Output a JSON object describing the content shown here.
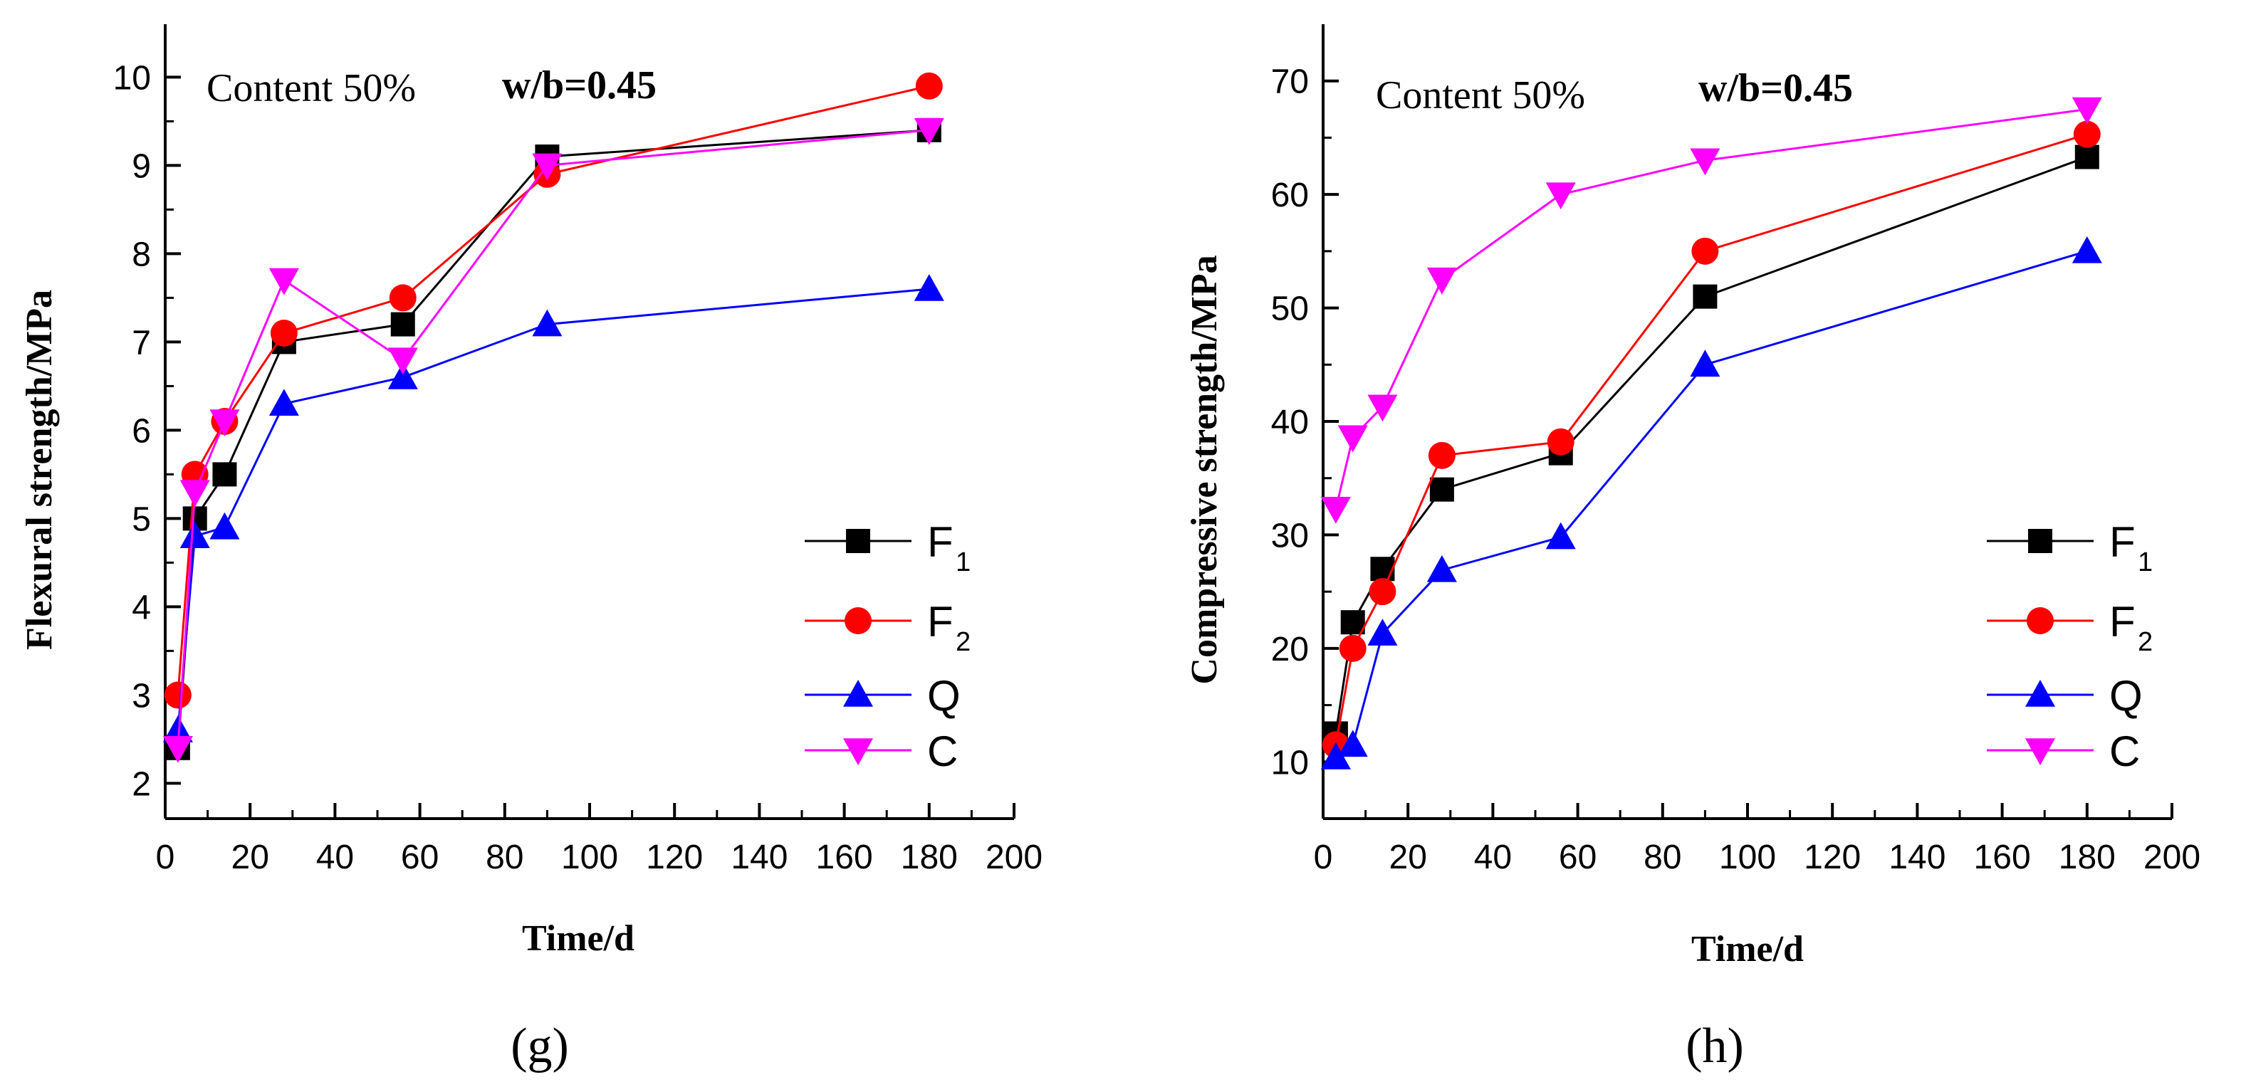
{
  "chart_data": [
    {
      "type": "line",
      "panel_label": "(g)",
      "annotation": "Content  50%",
      "annotation_bold": "w/b=0.45",
      "xlabel": "Time/d",
      "ylabel": "Flexural strength/MPa",
      "xlim": [
        0,
        200
      ],
      "ylim": [
        1.6,
        10.6
      ],
      "xticks": [
        0,
        20,
        40,
        60,
        80,
        100,
        120,
        140,
        160,
        180,
        200
      ],
      "yticks": [
        2,
        3,
        4,
        5,
        6,
        7,
        8,
        9,
        10
      ],
      "x": [
        3,
        7,
        14,
        28,
        56,
        90,
        180
      ],
      "series": [
        {
          "name": "F",
          "sub": "1",
          "marker": "square",
          "color": "#000000",
          "values": [
            2.4,
            5.0,
            5.5,
            7.0,
            7.2,
            9.1,
            9.4
          ]
        },
        {
          "name": "F",
          "sub": "2",
          "marker": "circle",
          "color": "#ff0000",
          "values": [
            3.0,
            5.5,
            6.1,
            7.1,
            7.5,
            8.9,
            9.9
          ]
        },
        {
          "name": "Q",
          "sub": "",
          "marker": "triangle-up",
          "color": "#0000ff",
          "values": [
            2.6,
            4.8,
            4.9,
            6.3,
            6.6,
            7.2,
            7.6
          ]
        },
        {
          "name": "C",
          "sub": "",
          "marker": "triangle-down",
          "color": "#ff00ff",
          "values": [
            2.4,
            5.3,
            6.1,
            7.7,
            6.8,
            9.0,
            9.4
          ]
        }
      ],
      "legend_position": "bottom-right"
    },
    {
      "type": "line",
      "panel_label": "(h)",
      "annotation": "Content  50%",
      "annotation_bold": "w/b=0.45",
      "xlabel": "Time/d",
      "ylabel": "Compressive strength/MPa",
      "xlim": [
        0,
        200
      ],
      "ylim": [
        5,
        75
      ],
      "xticks": [
        0,
        20,
        40,
        60,
        80,
        100,
        120,
        140,
        160,
        180,
        200
      ],
      "yticks": [
        10,
        20,
        30,
        40,
        50,
        60,
        70
      ],
      "x": [
        3,
        7,
        14,
        28,
        56,
        90,
        180
      ],
      "series": [
        {
          "name": "F",
          "sub": "1",
          "marker": "square",
          "color": "#000000",
          "values": [
            12.5,
            22.3,
            27.0,
            34.0,
            37.2,
            51.0,
            63.3
          ]
        },
        {
          "name": "F",
          "sub": "2",
          "marker": "circle",
          "color": "#ff0000",
          "values": [
            11.5,
            20.0,
            25.0,
            37.0,
            38.2,
            55.0,
            65.3
          ]
        },
        {
          "name": "Q",
          "sub": "",
          "marker": "triangle-up",
          "color": "#0000ff",
          "values": [
            10.4,
            11.5,
            21.3,
            26.9,
            29.8,
            45.0,
            55.0
          ]
        },
        {
          "name": "C",
          "sub": "",
          "marker": "triangle-down",
          "color": "#ff00ff",
          "values": [
            32.3,
            38.6,
            41.3,
            52.5,
            60.0,
            63.0,
            67.5
          ]
        }
      ],
      "legend_position": "bottom-right"
    }
  ]
}
